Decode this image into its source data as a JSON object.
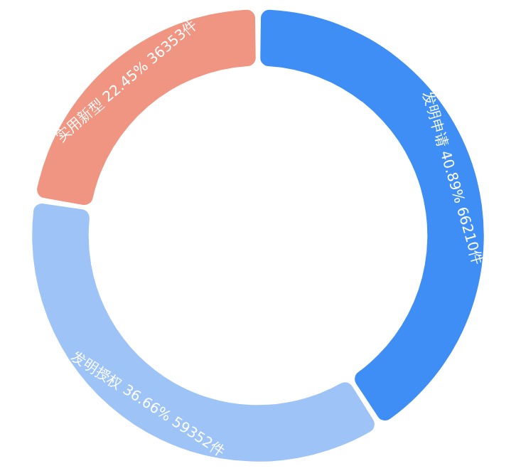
{
  "chart_data": {
    "type": "donut",
    "categories": [
      "发明申请",
      "发明授权",
      "实用新型"
    ],
    "values": [
      66210,
      59352,
      36353
    ],
    "value_labels": [
      "40.89% 66210件",
      "36.66% 59352件",
      "22.45% 36353件"
    ],
    "colors": [
      "#3f8ef5",
      "#9dc3f7",
      "#ef9582"
    ],
    "legend": false
  }
}
